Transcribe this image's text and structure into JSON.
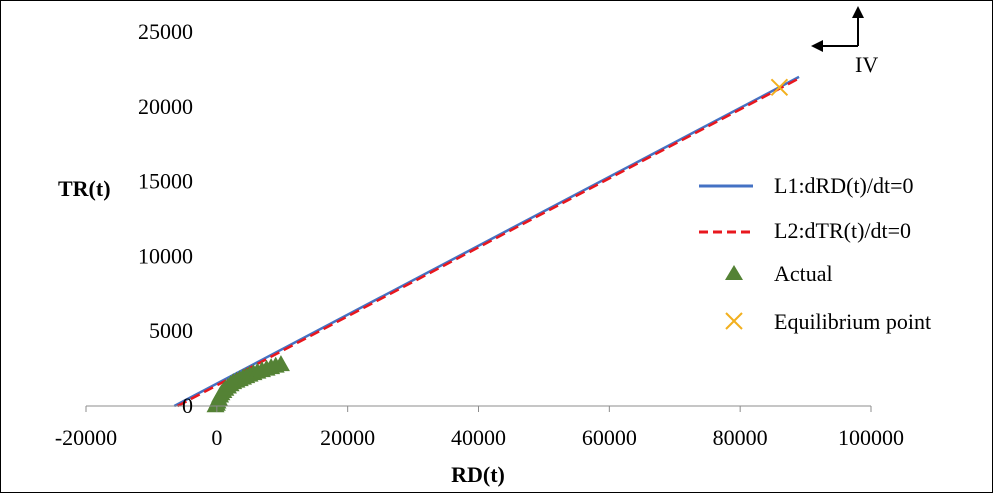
{
  "chart_data": {
    "type": "scatter",
    "xlabel": "RD(t)",
    "ylabel": "TR(t)",
    "xlim": [
      -20000,
      100000
    ],
    "ylim": [
      0,
      25000
    ],
    "x_ticks": [
      -20000,
      0,
      20000,
      40000,
      60000,
      80000,
      100000
    ],
    "y_ticks": [
      0,
      5000,
      10000,
      15000,
      20000,
      25000
    ],
    "x_tick_labels": [
      "-20000",
      "0",
      "20000",
      "40000",
      "60000",
      "80000",
      "100000"
    ],
    "y_tick_labels": [
      "0",
      "5000",
      "10000",
      "15000",
      "20000",
      "25000"
    ],
    "grid": false,
    "legend_position": "right",
    "series": [
      {
        "name": "L1:dRD(t)/dt=0",
        "kind": "line",
        "style": "solid",
        "color": "#4472C4",
        "points": [
          [
            -6500,
            0
          ],
          [
            89000,
            22000
          ]
        ]
      },
      {
        "name": "L2:dTR(t)/dt=0",
        "kind": "line",
        "style": "dashed",
        "color": "#E8171E",
        "points": [
          [
            -6000,
            0
          ],
          [
            89000,
            21900
          ]
        ]
      },
      {
        "name": "Actual",
        "kind": "marker",
        "marker": "triangle",
        "color": "#548235",
        "points": [
          [
            -200,
            50
          ],
          [
            0,
            150
          ],
          [
            100,
            300
          ],
          [
            300,
            500
          ],
          [
            500,
            700
          ],
          [
            700,
            850
          ],
          [
            1000,
            1000
          ],
          [
            1300,
            1150
          ],
          [
            1700,
            1300
          ],
          [
            2100,
            1450
          ],
          [
            2500,
            1600
          ],
          [
            3000,
            1700
          ],
          [
            3500,
            1800
          ],
          [
            4000,
            1900
          ],
          [
            4500,
            2000
          ],
          [
            5000,
            2100
          ],
          [
            5600,
            2200
          ],
          [
            6200,
            2300
          ],
          [
            6900,
            2400
          ],
          [
            7600,
            2500
          ],
          [
            8300,
            2600
          ],
          [
            9000,
            2700
          ],
          [
            9800,
            2800
          ]
        ]
      },
      {
        "name": "Equilibrium point",
        "kind": "marker",
        "marker": "x",
        "color": "#F2B01E",
        "points": [
          [
            86000,
            21300
          ]
        ]
      }
    ],
    "annotation": {
      "text": "IV"
    }
  }
}
